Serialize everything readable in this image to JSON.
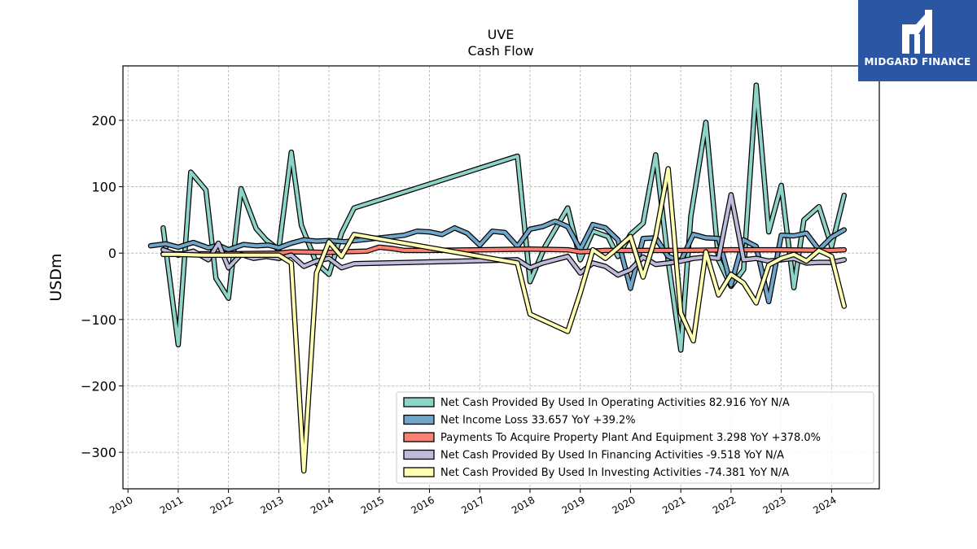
{
  "brand": {
    "name": "MIDGARD FINANCE",
    "logo_color": "#2a56a4"
  },
  "chart_data": {
    "type": "line",
    "title": "UVE",
    "subtitle": "Cash Flow",
    "xlabel": "",
    "ylabel": "USDm",
    "xlim": [
      2009.9,
      2024.95
    ],
    "ylim": [
      -355,
      282
    ],
    "x_ticks": [
      2010,
      2011,
      2012,
      2013,
      2014,
      2015,
      2016,
      2017,
      2018,
      2019,
      2020,
      2021,
      2022,
      2023,
      2024
    ],
    "x_tick_labels": [
      "2010",
      "2011",
      "2012",
      "2013",
      "2014",
      "2015",
      "2016",
      "2017",
      "2018",
      "2019",
      "2020",
      "2021",
      "2022",
      "2023",
      "2024"
    ],
    "y_ticks": [
      -300,
      -200,
      -100,
      0,
      100,
      200
    ],
    "y_tick_labels": [
      "−300",
      "−200",
      "−100",
      "0",
      "100",
      "200"
    ],
    "grid": true,
    "legend_position": "lower-right",
    "series": [
      {
        "name": "Net Cash Provided By Used In Operating Activities",
        "legend_label": "Net Cash Provided By Used In Operating Activities  82.916 YoY N/A",
        "color": "#8dd3c7",
        "points": [
          [
            2010.7,
            38
          ],
          [
            2011.0,
            -138
          ],
          [
            2011.25,
            122
          ],
          [
            2011.55,
            95
          ],
          [
            2011.75,
            -38
          ],
          [
            2012.0,
            -68
          ],
          [
            2012.25,
            97
          ],
          [
            2012.55,
            37
          ],
          [
            2012.75,
            20
          ],
          [
            2013.0,
            5
          ],
          [
            2013.25,
            152
          ],
          [
            2013.45,
            42
          ],
          [
            2013.75,
            -15
          ],
          [
            2014.0,
            -32
          ],
          [
            2014.25,
            30
          ],
          [
            2014.5,
            68
          ],
          [
            2017.75,
            146
          ],
          [
            2018.0,
            -43
          ],
          [
            2018.3,
            10
          ],
          [
            2018.75,
            68
          ],
          [
            2019.0,
            -10
          ],
          [
            2019.25,
            33
          ],
          [
            2019.55,
            25
          ],
          [
            2019.75,
            -5
          ],
          [
            2020.0,
            28
          ],
          [
            2020.25,
            45
          ],
          [
            2020.5,
            148
          ],
          [
            2020.75,
            -12
          ],
          [
            2021.0,
            -146
          ],
          [
            2021.2,
            55
          ],
          [
            2021.5,
            197
          ],
          [
            2021.75,
            -10
          ],
          [
            2022.0,
            -50
          ],
          [
            2022.25,
            -25
          ],
          [
            2022.5,
            253
          ],
          [
            2022.75,
            32
          ],
          [
            2023.0,
            102
          ],
          [
            2023.25,
            -52
          ],
          [
            2023.45,
            50
          ],
          [
            2023.75,
            70
          ],
          [
            2024.0,
            10
          ],
          [
            2024.25,
            87
          ]
        ]
      },
      {
        "name": "Net Income Loss",
        "legend_label": "Net Income Loss  33.657 YoY +39.2%",
        "color": "#6fa6ca",
        "points": [
          [
            2010.45,
            11
          ],
          [
            2010.75,
            14
          ],
          [
            2011.0,
            9
          ],
          [
            2011.3,
            16
          ],
          [
            2011.6,
            8
          ],
          [
            2011.8,
            12
          ],
          [
            2012.0,
            5
          ],
          [
            2012.3,
            13
          ],
          [
            2012.55,
            11
          ],
          [
            2012.8,
            12
          ],
          [
            2013.0,
            8
          ],
          [
            2013.25,
            15
          ],
          [
            2013.5,
            20
          ],
          [
            2013.75,
            18
          ],
          [
            2014.0,
            19
          ],
          [
            2014.3,
            17
          ],
          [
            2015.5,
            27
          ],
          [
            2015.75,
            33
          ],
          [
            2016.0,
            32
          ],
          [
            2016.25,
            28
          ],
          [
            2016.5,
            38
          ],
          [
            2016.75,
            30
          ],
          [
            2017.0,
            12
          ],
          [
            2017.25,
            33
          ],
          [
            2017.5,
            31
          ],
          [
            2017.75,
            10
          ],
          [
            2018.0,
            36
          ],
          [
            2018.25,
            40
          ],
          [
            2018.5,
            48
          ],
          [
            2018.75,
            40
          ],
          [
            2019.0,
            5
          ],
          [
            2019.25,
            43
          ],
          [
            2019.5,
            38
          ],
          [
            2019.75,
            20
          ],
          [
            2020.0,
            -53
          ],
          [
            2020.25,
            22
          ],
          [
            2020.5,
            23
          ],
          [
            2020.75,
            -5
          ],
          [
            2021.0,
            -12
          ],
          [
            2021.25,
            28
          ],
          [
            2021.5,
            23
          ],
          [
            2021.75,
            22
          ],
          [
            2022.0,
            -48
          ],
          [
            2022.25,
            20
          ],
          [
            2022.5,
            10
          ],
          [
            2022.75,
            -73
          ],
          [
            2023.0,
            27
          ],
          [
            2023.25,
            26
          ],
          [
            2023.5,
            30
          ],
          [
            2023.75,
            5
          ],
          [
            2024.0,
            24
          ],
          [
            2024.25,
            35
          ]
        ]
      },
      {
        "name": "Payments To Acquire Property Plant And Equipment",
        "legend_label": "Payments To Acquire Property Plant And Equipment  3.298 YoY +378.0%",
        "color": "#fb8072",
        "points": [
          [
            2010.7,
            -1
          ],
          [
            2012.0,
            -1
          ],
          [
            2013.0,
            0
          ],
          [
            2013.25,
            2
          ],
          [
            2014.0,
            1
          ],
          [
            2014.25,
            2
          ],
          [
            2014.75,
            3
          ],
          [
            2015.0,
            9
          ],
          [
            2015.25,
            7
          ],
          [
            2015.5,
            4
          ],
          [
            2016.0,
            4
          ],
          [
            2017.0,
            5
          ],
          [
            2018.0,
            6
          ],
          [
            2018.75,
            5
          ],
          [
            2019.0,
            2
          ],
          [
            2019.5,
            4
          ],
          [
            2020.0,
            4
          ],
          [
            2021.0,
            4
          ],
          [
            2022.0,
            5
          ],
          [
            2023.0,
            5
          ],
          [
            2024.0,
            4
          ],
          [
            2024.25,
            5
          ]
        ]
      },
      {
        "name": "Net Cash Provided By Used In Financing Activities",
        "legend_label": "Net Cash Provided By Used In Financing Activities  -9.518 YoY N/A",
        "color": "#bebada",
        "points": [
          [
            2010.7,
            5
          ],
          [
            2011.0,
            -3
          ],
          [
            2011.3,
            3
          ],
          [
            2011.6,
            -10
          ],
          [
            2011.8,
            15
          ],
          [
            2012.0,
            -22
          ],
          [
            2012.25,
            -2
          ],
          [
            2012.5,
            -8
          ],
          [
            2012.75,
            -5
          ],
          [
            2013.0,
            -8
          ],
          [
            2013.25,
            -3
          ],
          [
            2013.5,
            -20
          ],
          [
            2013.75,
            -12
          ],
          [
            2014.0,
            -8
          ],
          [
            2014.25,
            -22
          ],
          [
            2014.5,
            -16
          ],
          [
            2017.75,
            -10
          ],
          [
            2018.0,
            -22
          ],
          [
            2018.25,
            -15
          ],
          [
            2018.75,
            -5
          ],
          [
            2019.0,
            -30
          ],
          [
            2019.25,
            -15
          ],
          [
            2019.5,
            -20
          ],
          [
            2019.75,
            -33
          ],
          [
            2020.0,
            -25
          ],
          [
            2020.25,
            -6
          ],
          [
            2020.5,
            -17
          ],
          [
            2020.75,
            -15
          ],
          [
            2021.0,
            -12
          ],
          [
            2021.25,
            -8
          ],
          [
            2021.5,
            -6
          ],
          [
            2021.75,
            -8
          ],
          [
            2022.0,
            88
          ],
          [
            2022.25,
            -10
          ],
          [
            2022.5,
            -8
          ],
          [
            2022.75,
            -12
          ],
          [
            2023.0,
            -10
          ],
          [
            2023.25,
            -8
          ],
          [
            2023.5,
            -15
          ],
          [
            2023.75,
            -14
          ],
          [
            2024.0,
            -14
          ],
          [
            2024.25,
            -10
          ]
        ]
      },
      {
        "name": "Net Cash Provided By Used In Investing Activities",
        "legend_label": "Net Cash Provided By Used In Investing Activities  -74.381 YoY N/A",
        "color": "#ffffb3",
        "points": [
          [
            2010.7,
            -2
          ],
          [
            2011.0,
            -2
          ],
          [
            2011.5,
            -3
          ],
          [
            2012.0,
            -3
          ],
          [
            2012.5,
            -3
          ],
          [
            2013.0,
            -3
          ],
          [
            2013.25,
            -15
          ],
          [
            2013.5,
            -328
          ],
          [
            2013.75,
            -30
          ],
          [
            2014.0,
            17
          ],
          [
            2014.25,
            -5
          ],
          [
            2014.5,
            28
          ],
          [
            2017.75,
            -15
          ],
          [
            2018.0,
            -92
          ],
          [
            2018.75,
            -118
          ],
          [
            2019.0,
            -60
          ],
          [
            2019.25,
            5
          ],
          [
            2019.5,
            -8
          ],
          [
            2019.75,
            8
          ],
          [
            2020.0,
            25
          ],
          [
            2020.25,
            -36
          ],
          [
            2020.5,
            25
          ],
          [
            2020.75,
            127
          ],
          [
            2021.0,
            -90
          ],
          [
            2021.25,
            -132
          ],
          [
            2021.5,
            2
          ],
          [
            2021.75,
            -63
          ],
          [
            2022.0,
            -32
          ],
          [
            2022.25,
            -45
          ],
          [
            2022.5,
            -75
          ],
          [
            2022.75,
            -18
          ],
          [
            2023.0,
            -8
          ],
          [
            2023.25,
            -2
          ],
          [
            2023.5,
            -12
          ],
          [
            2023.75,
            4
          ],
          [
            2024.0,
            -5
          ],
          [
            2024.25,
            -80
          ]
        ]
      }
    ]
  }
}
